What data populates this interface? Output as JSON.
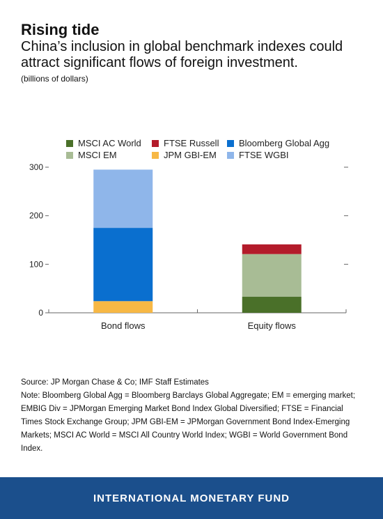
{
  "header": {
    "title": "Rising tide",
    "subtitle": "China’s inclusion in global benchmark indexes could attract significant flows of foreign investment.",
    "units": "(billions of dollars)"
  },
  "chart_data": {
    "type": "bar",
    "stacked": true,
    "categories": [
      "Bond flows",
      "Equity flows"
    ],
    "series": [
      {
        "name": "JPM GBI-EM",
        "color": "#f7b845",
        "values": [
          24,
          0
        ]
      },
      {
        "name": "Bloomberg Global Agg",
        "color": "#0a6fcf",
        "values": [
          151,
          0
        ]
      },
      {
        "name": "FTSE WGBI",
        "color": "#8fb6ea",
        "values": [
          120,
          0
        ]
      },
      {
        "name": "MSCI AC World",
        "color": "#4a7029",
        "values": [
          0,
          33
        ]
      },
      {
        "name": "MSCI EM",
        "color": "#a8bc95",
        "values": [
          0,
          88
        ]
      },
      {
        "name": "FTSE Russell",
        "color": "#b31b2a",
        "values": [
          0,
          20
        ]
      }
    ],
    "legend_order": [
      "MSCI AC World",
      "FTSE Russell",
      "Bloomberg Global Agg",
      "MSCI EM",
      "JPM GBI-EM",
      "FTSE WGBI"
    ],
    "legend_placement": "top",
    "ylim": [
      0,
      300
    ],
    "yticks": [
      0,
      100,
      200,
      300
    ],
    "grid": false
  },
  "notes": {
    "source": "Source: JP Morgan Chase & Co; IMF Staff Estimates",
    "note": "Note: Bloomberg Global Agg = Bloomberg Barclays Global Aggregate; EM = emerging market; EMBIG Div = JPMorgan Emerging Market Bond Index Global Diversified; FTSE = Financial Times Stock Exchange Group; JPM GBI-EM = JPMorgan Government Bond Index-Emerging Markets; MSCI AC World = MSCI All Country World Index; WGBI = World Government Bond Index."
  },
  "footer": {
    "org": "INTERNATIONAL MONETARY FUND"
  }
}
